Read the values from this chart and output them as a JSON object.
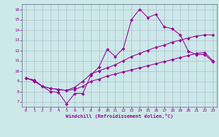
{
  "xlabel": "Windchill (Refroidissement éolien,°C)",
  "background_color": "#cce8e8",
  "grid_color": "#aabbcc",
  "line_color": "#990099",
  "spine_color": "#667788",
  "xlim": [
    -0.5,
    23.5
  ],
  "ylim": [
    6.5,
    16.5
  ],
  "xticks": [
    0,
    1,
    2,
    3,
    4,
    5,
    6,
    7,
    8,
    9,
    10,
    11,
    12,
    13,
    14,
    15,
    16,
    17,
    18,
    19,
    20,
    21,
    22,
    23
  ],
  "yticks": [
    7,
    8,
    9,
    10,
    11,
    12,
    13,
    14,
    15,
    16
  ],
  "line1_x": [
    0,
    1,
    2,
    3,
    4,
    5,
    6,
    7,
    8,
    9,
    10,
    11,
    12,
    13,
    14,
    15,
    16,
    17,
    18,
    19,
    20,
    21,
    22,
    23
  ],
  "line1_y": [
    9.3,
    9.0,
    8.5,
    8.0,
    7.9,
    6.8,
    7.8,
    7.8,
    9.6,
    10.4,
    12.1,
    11.4,
    12.2,
    15.0,
    16.0,
    15.2,
    15.5,
    14.3,
    14.1,
    13.5,
    11.9,
    11.6,
    11.6,
    10.9
  ],
  "line2_x": [
    0,
    1,
    2,
    3,
    4,
    5,
    6,
    7,
    8,
    9,
    10,
    11,
    12,
    13,
    14,
    15,
    16,
    17,
    18,
    19,
    20,
    21,
    22,
    23
  ],
  "line2_y": [
    9.3,
    9.1,
    8.5,
    8.3,
    8.2,
    8.1,
    8.4,
    9.0,
    9.7,
    10.0,
    10.3,
    10.6,
    11.0,
    11.4,
    11.7,
    12.0,
    12.3,
    12.5,
    12.8,
    13.0,
    13.2,
    13.4,
    13.5,
    13.5
  ],
  "line3_x": [
    0,
    1,
    2,
    3,
    4,
    5,
    6,
    7,
    8,
    9,
    10,
    11,
    12,
    13,
    14,
    15,
    16,
    17,
    18,
    19,
    20,
    21,
    22,
    23
  ],
  "line3_y": [
    9.3,
    9.1,
    8.5,
    8.3,
    8.2,
    8.1,
    8.2,
    8.5,
    9.0,
    9.2,
    9.5,
    9.7,
    9.9,
    10.1,
    10.3,
    10.5,
    10.7,
    10.9,
    11.1,
    11.3,
    11.5,
    11.7,
    11.8,
    11.0
  ]
}
